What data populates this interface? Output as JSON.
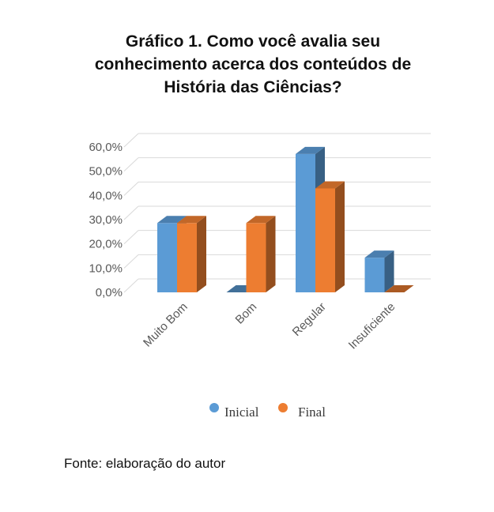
{
  "figure_title": {
    "line1": "Gráfico 1. Como você avalia seu",
    "line2": "conhecimento acerca dos conteúdos de",
    "line3": "História das Ciências?"
  },
  "source": "Fonte: elaboração do autor",
  "colors": {
    "inicial": "#5B9BD5",
    "final": "#ED7D31",
    "grid": "#D9D9D9",
    "tick_text": "#595959"
  },
  "chart_data": {
    "type": "bar",
    "style": "3d-clustered-column",
    "title": "Gráfico 1. Como você avalia seu conhecimento acerca dos conteúdos de História das Ciências?",
    "categories": [
      "Muito Bom",
      "Bom",
      "Regular",
      "Insuficiente"
    ],
    "series": [
      {
        "name": "Inicial",
        "values": [
          28.6,
          0.0,
          57.1,
          14.3
        ]
      },
      {
        "name": "Final",
        "values": [
          28.6,
          28.6,
          42.9,
          0.0
        ]
      }
    ],
    "ylim": [
      0,
      60
    ],
    "yticks": [
      "0,0%",
      "10,0%",
      "20,0%",
      "30,0%",
      "40,0%",
      "50,0%",
      "60,0%"
    ],
    "xlabel": "",
    "ylabel": "",
    "grid": true,
    "legend_position": "bottom"
  }
}
